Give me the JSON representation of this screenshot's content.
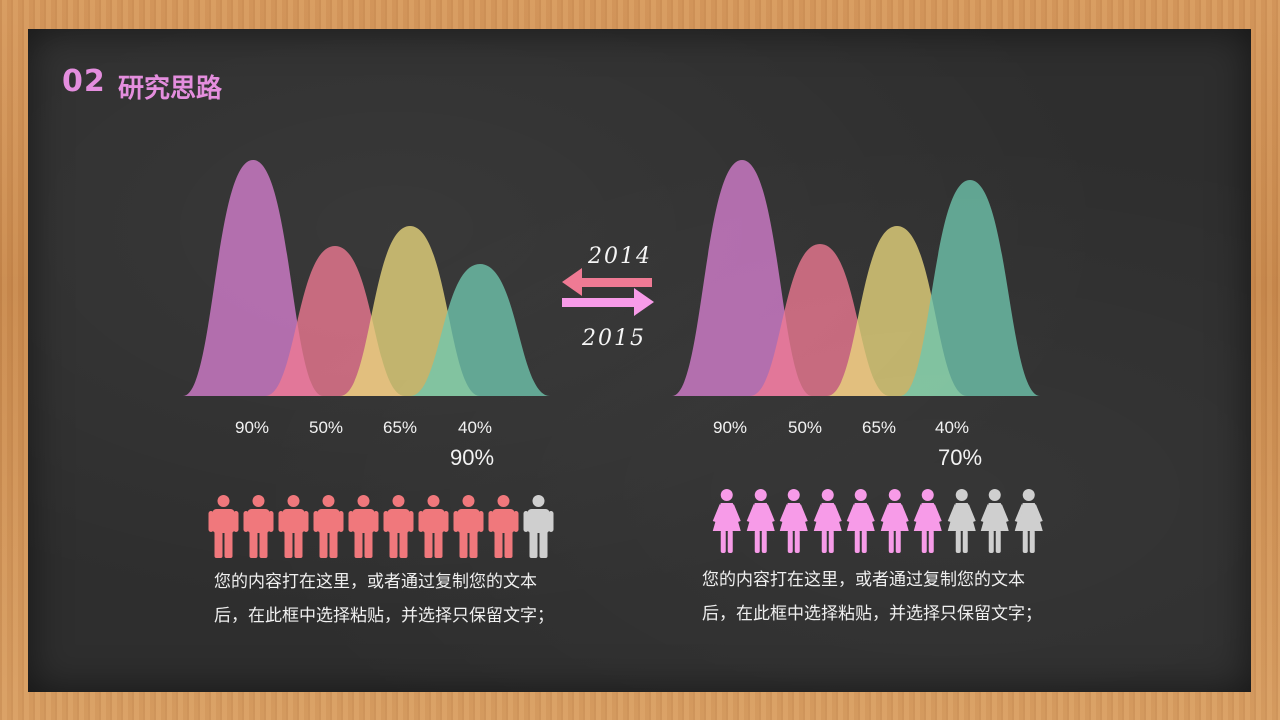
{
  "header": {
    "number": "02",
    "title": "研究思路"
  },
  "colors": {
    "purple": "#d67fd0",
    "pink": "#ef7a94",
    "yellow": "#e9d77d",
    "teal": "#6fc6ae",
    "man": "#f0787c",
    "woman": "#f79be8",
    "inactive": "#cfcfcf"
  },
  "years": {
    "a": "2014",
    "b": "2015"
  },
  "chart_data": [
    {
      "type": "area",
      "series": [
        {
          "value": 90,
          "label": "90%",
          "color": "#d67fd0"
        },
        {
          "value": 50,
          "label": "50%",
          "color": "#ef7a94"
        },
        {
          "value": 65,
          "label": "65%",
          "color": "#e9d77d"
        },
        {
          "value": 40,
          "label": "40%",
          "color": "#6fc6ae"
        }
      ],
      "total_label": "90%",
      "people": {
        "icon": "man-icon",
        "total": 10,
        "filled": 9,
        "color": "#f0787c"
      }
    },
    {
      "type": "area",
      "series": [
        {
          "value": 90,
          "label": "90%",
          "color": "#d67fd0"
        },
        {
          "value": 50,
          "label": "50%",
          "color": "#ef7a94"
        },
        {
          "value": 65,
          "label": "65%",
          "color": "#e9d77d"
        },
        {
          "value": 40,
          "label": "40%",
          "color": "#6fc6ae"
        }
      ],
      "total_label": "70%",
      "people": {
        "icon": "woman-icon",
        "total": 10,
        "filled": 7,
        "color": "#f79be8"
      }
    }
  ],
  "descriptions": [
    {
      "line1": "您的内容打在这里，或者通过复制您的文本",
      "line2": "后，在此框中选择粘贴，并选择只保留文字；"
    },
    {
      "line1": "您的内容打在这里，或者通过复制您的文本",
      "line2": "后，在此框中选择粘贴，并选择只保留文字；"
    }
  ]
}
